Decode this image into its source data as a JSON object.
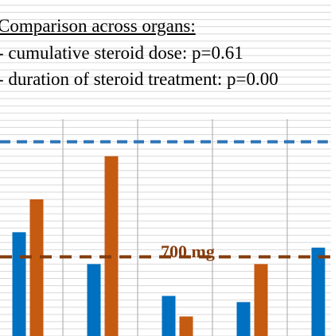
{
  "chart_data": {
    "type": "bar",
    "categories": [
      "",
      "",
      "",
      "",
      ""
    ],
    "series": [
      {
        "color": "#0070c0",
        "values": [
          820,
          665,
          510,
          480,
          745
        ]
      },
      {
        "color": "#c55a11",
        "values": [
          980,
          1190,
          410,
          665,
          null
        ]
      }
    ],
    "reference_lines": [
      {
        "value": 1260,
        "color": "#2e75b6",
        "style": "dashed"
      },
      {
        "value": 700,
        "color": "#843c0c",
        "style": "dashed",
        "label": "700 mg"
      }
    ],
    "annotations": {
      "title": "Comparison across organs:",
      "lines": [
        "- cumulative steroid dose: p=0.61",
        "- duration of steroid treatment: p=0.00"
      ]
    },
    "ylim": [
      315,
      1950
    ],
    "grid": true,
    "gridline_step": 35,
    "category_dividers": true
  }
}
